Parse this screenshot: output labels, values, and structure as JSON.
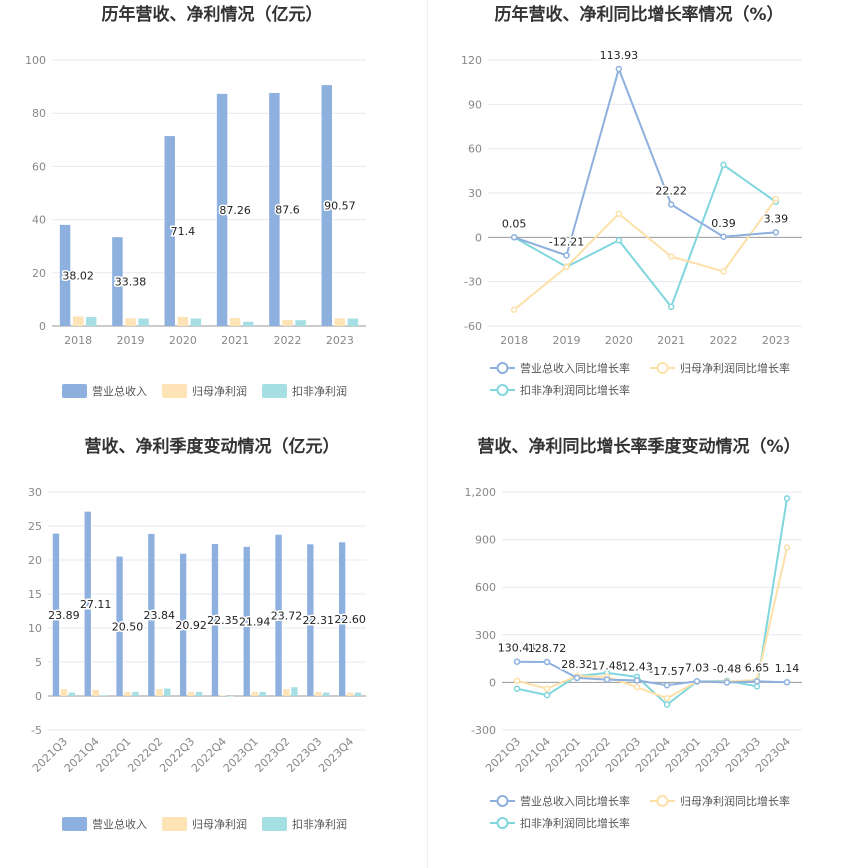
{
  "chart_data": [
    {
      "id": "annual_amount",
      "type": "bar",
      "title": "历年营收、净利情况（亿元）",
      "categories": [
        "2018",
        "2019",
        "2020",
        "2021",
        "2022",
        "2023"
      ],
      "ylim": [
        0,
        100
      ],
      "yticks": [
        0,
        20,
        40,
        60,
        80,
        100
      ],
      "series": [
        {
          "name": "营业总收入",
          "color": "#8eb0de",
          "values": [
            38.02,
            33.38,
            71.4,
            87.26,
            87.6,
            90.57
          ],
          "labels": [
            "38.02",
            "33.38",
            "71.4",
            "87.26",
            "87.6",
            "90.57"
          ]
        },
        {
          "name": "归母净利润",
          "color": "#fde3b6",
          "values": [
            3.6,
            2.9,
            3.4,
            3.0,
            2.3,
            2.9
          ]
        },
        {
          "name": "扣非净利润",
          "color": "#a5dfe4",
          "values": [
            3.4,
            2.8,
            2.8,
            1.6,
            2.2,
            2.8
          ]
        }
      ],
      "legend": "bottom"
    },
    {
      "id": "annual_growth",
      "type": "line",
      "title": "历年营收、净利同比增长率情况（%）",
      "categories": [
        "2018",
        "2019",
        "2020",
        "2021",
        "2022",
        "2023"
      ],
      "ylim": [
        -60,
        120
      ],
      "yticks": [
        -60,
        -30,
        0,
        30,
        60,
        90,
        120
      ],
      "series": [
        {
          "name": "营业总收入同比增长率",
          "color": "#8eb0de",
          "values": [
            0.05,
            -12.21,
            113.93,
            22.22,
            0.39,
            3.39
          ],
          "labels": [
            "0.05",
            "-12.21",
            "113.93",
            "22.22",
            "0.39",
            "3.39"
          ]
        },
        {
          "name": "归母净利润同比增长率",
          "color": "#fde0a8",
          "values": [
            -49,
            -20,
            16,
            -13,
            -23,
            26
          ]
        },
        {
          "name": "扣非净利润同比增长率",
          "color": "#7fd6dd",
          "values": [
            0,
            -20,
            -2,
            -47,
            49,
            24
          ]
        }
      ],
      "legend": "bottom"
    },
    {
      "id": "quarterly_amount",
      "type": "bar",
      "title": "营收、净利季度变动情况（亿元）",
      "categories": [
        "2021Q3",
        "2021Q4",
        "2022Q1",
        "2022Q2",
        "2022Q3",
        "2022Q4",
        "2023Q1",
        "2023Q2",
        "2023Q3",
        "2023Q4"
      ],
      "ylim": [
        -5,
        30
      ],
      "yticks": [
        -5,
        0,
        5,
        10,
        15,
        20,
        25,
        30
      ],
      "series": [
        {
          "name": "营业总收入",
          "color": "#8eb0de",
          "values": [
            23.89,
            27.11,
            20.5,
            23.84,
            20.92,
            22.35,
            21.94,
            23.72,
            22.31,
            22.6
          ],
          "labels": [
            "23.89",
            "27.11",
            "20.50",
            "23.84",
            "20.92",
            "22.35",
            "21.94",
            "23.72",
            "22.31",
            "22.60"
          ]
        },
        {
          "name": "归母净利润",
          "color": "#fde3b6",
          "values": [
            1.0,
            0.9,
            0.6,
            1.0,
            0.6,
            0.1,
            0.6,
            1.0,
            0.6,
            0.5
          ]
        },
        {
          "name": "扣非净利润",
          "color": "#a5dfe4",
          "values": [
            0.5,
            0.1,
            0.6,
            1.1,
            0.6,
            0.0,
            0.6,
            1.3,
            0.5,
            0.5
          ]
        }
      ],
      "legend": "bottom"
    },
    {
      "id": "quarterly_growth",
      "type": "line",
      "title": "营收、净利同比增长率季度变动情况（%）",
      "categories": [
        "2021Q3",
        "2021Q4",
        "2022Q1",
        "2022Q2",
        "2022Q3",
        "2022Q4",
        "2023Q1",
        "2023Q2",
        "2023Q3",
        "2023Q4"
      ],
      "ylim": [
        -300,
        1200
      ],
      "yticks": [
        -300,
        0,
        300,
        600,
        900,
        1200
      ],
      "ytick_labels": [
        "-300",
        "0",
        "300",
        "600",
        "900",
        "1,200"
      ],
      "series": [
        {
          "name": "营业总收入同比增长率",
          "color": "#8eb0de",
          "values": [
            130.44,
            128.72,
            28.32,
            17.48,
            12.43,
            -17.57,
            7.03,
            -0.48,
            6.65,
            1.14
          ],
          "labels": [
            "130.44",
            "128.72",
            "28.32",
            "17.48",
            "12.43",
            "-17.57",
            "7.03",
            "-0.48",
            "6.65",
            "1.14"
          ]
        },
        {
          "name": "归母净利润同比增长率",
          "color": "#fde0a8",
          "values": [
            10,
            -40,
            40,
            35,
            -30,
            -100,
            5,
            5,
            15,
            850
          ]
        },
        {
          "name": "扣非净利润同比增长率",
          "color": "#7fd6dd",
          "values": [
            -40,
            -80,
            40,
            60,
            35,
            -140,
            5,
            10,
            -25,
            1160
          ]
        }
      ],
      "legend": "bottom"
    }
  ]
}
